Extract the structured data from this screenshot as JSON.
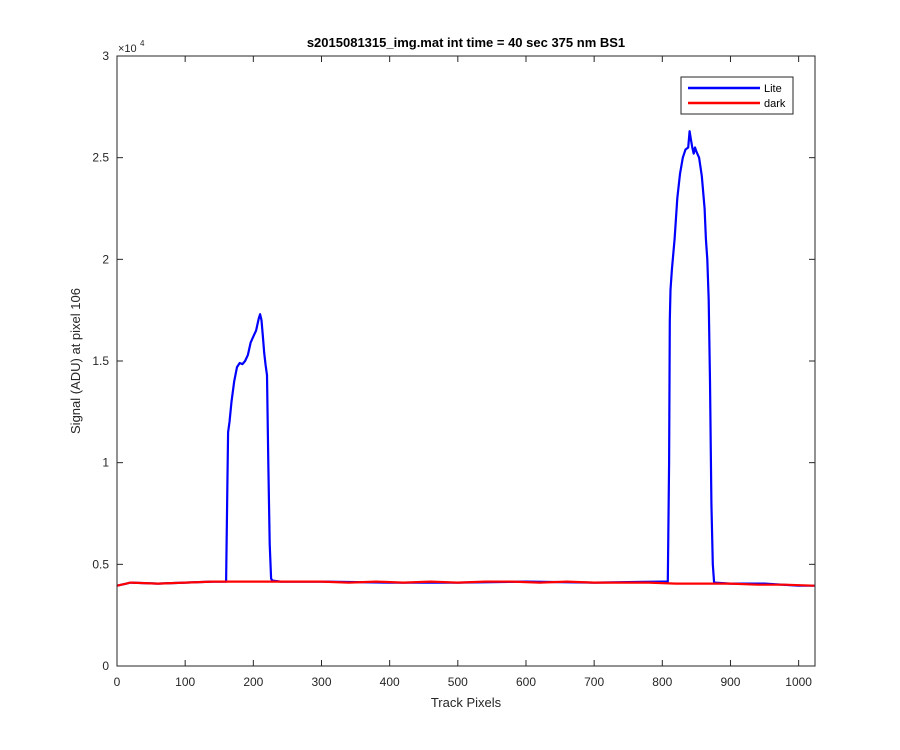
{
  "chart_data": {
    "type": "line",
    "title": "s2015081315_img.mat int time = 40 sec  375 nm BS1",
    "xlabel": "Track Pixels",
    "ylabel": "Signal (ADU) at pixel 106",
    "xlim": [
      0,
      1024
    ],
    "ylim": [
      0,
      30000
    ],
    "x_ticks": [
      0,
      100,
      200,
      300,
      400,
      500,
      600,
      700,
      800,
      900,
      1000
    ],
    "y_ticks": [
      0,
      5000,
      10000,
      15000,
      20000,
      25000,
      30000
    ],
    "y_tick_labels": [
      "0",
      "0.5",
      "1",
      "1.5",
      "2",
      "2.5",
      "3"
    ],
    "y_exponent": "×10",
    "y_exponent_power": "4",
    "grid": false,
    "legend_position": "top-right",
    "series": [
      {
        "name": "Lite",
        "color": "#0000ff",
        "x": [
          0,
          20,
          60,
          100,
          140,
          160,
          162,
          163,
          165,
          168,
          172,
          176,
          180,
          184,
          188,
          192,
          196,
          200,
          204,
          208,
          210,
          212,
          214,
          216,
          218,
          220,
          222,
          224,
          226,
          228,
          240,
          300,
          400,
          500,
          600,
          700,
          800,
          808,
          810,
          811,
          812,
          814,
          818,
          822,
          826,
          830,
          834,
          838,
          840,
          842,
          844,
          846,
          848,
          850,
          854,
          858,
          862,
          864,
          866,
          868,
          870,
          872,
          874,
          876,
          900,
          950,
          1000,
          1023
        ],
        "y": [
          3950,
          4100,
          4050,
          4100,
          4150,
          4150,
          9000,
          11500,
          12000,
          13000,
          14000,
          14700,
          14900,
          14850,
          15000,
          15300,
          15900,
          16200,
          16500,
          17100,
          17300,
          17000,
          16200,
          15400,
          14800,
          14300,
          10000,
          6000,
          4300,
          4200,
          4150,
          4150,
          4100,
          4100,
          4150,
          4100,
          4150,
          4150,
          10000,
          17000,
          18500,
          19500,
          21000,
          23000,
          24200,
          25000,
          25400,
          25500,
          26300,
          25900,
          25500,
          25200,
          25500,
          25300,
          25000,
          24100,
          22500,
          21000,
          20000,
          18000,
          14000,
          8000,
          5000,
          4100,
          4050,
          4050,
          3950,
          3950
        ]
      },
      {
        "name": "dark",
        "color": "#ff0000",
        "x": [
          0,
          20,
          60,
          100,
          140,
          180,
          220,
          260,
          300,
          340,
          380,
          420,
          460,
          500,
          540,
          580,
          620,
          660,
          700,
          740,
          780,
          820,
          860,
          900,
          940,
          980,
          1023
        ],
        "y": [
          3950,
          4100,
          4050,
          4100,
          4150,
          4150,
          4150,
          4150,
          4150,
          4100,
          4150,
          4100,
          4150,
          4100,
          4150,
          4150,
          4100,
          4150,
          4100,
          4100,
          4100,
          4050,
          4050,
          4050,
          4000,
          4000,
          3950
        ]
      }
    ]
  }
}
